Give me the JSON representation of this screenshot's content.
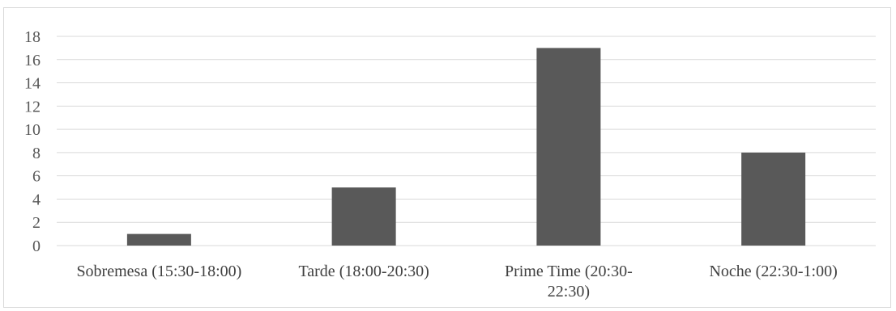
{
  "chart_data": {
    "type": "bar",
    "categories": [
      [
        "Sobremesa (15:30-18:00)"
      ],
      [
        "Tarde (18:00-20:30)"
      ],
      [
        "Prime Time (20:30-",
        "22:30)"
      ],
      [
        "Noche (22:30-1:00)"
      ]
    ],
    "values": [
      1,
      5,
      17,
      8
    ],
    "ylim": [
      0,
      18
    ],
    "y_ticks": [
      0,
      2,
      4,
      6,
      8,
      10,
      12,
      14,
      16,
      18
    ],
    "title": "",
    "xlabel": "",
    "ylabel": "",
    "grid": true,
    "legend": "none",
    "bar_color": "#595959",
    "grid_color": "#d9d9d9"
  }
}
